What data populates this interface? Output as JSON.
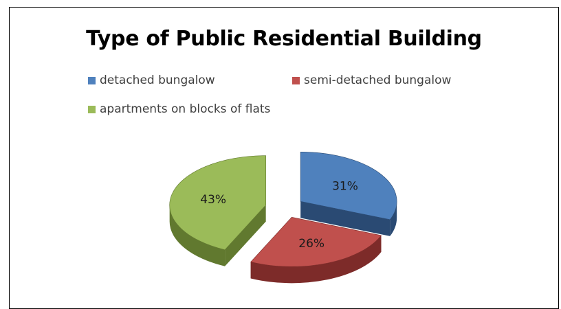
{
  "chart_data": {
    "type": "pie",
    "title": "Type of Public Residential Building",
    "legend_position": "top",
    "exploded": true,
    "three_d": true,
    "slices": [
      {
        "label": "detached bungalow",
        "value": 31,
        "value_label": "31%",
        "color": "#4f81bd",
        "side_color": "#2a4a73"
      },
      {
        "label": "semi-detached bungalow",
        "value": 26,
        "value_label": "26%",
        "color": "#c0504d",
        "side_color": "#7d2b29"
      },
      {
        "label": "apartments on blocks of flats",
        "value": 43,
        "value_label": "43%",
        "color": "#9bbb59",
        "side_color": "#61792f"
      }
    ]
  }
}
